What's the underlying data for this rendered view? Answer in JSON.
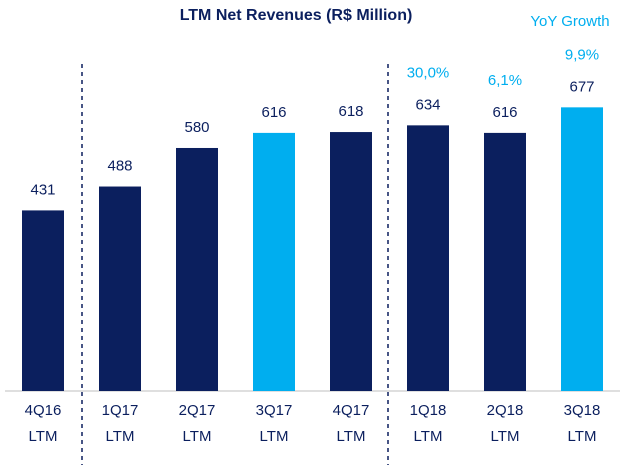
{
  "chart_data": {
    "type": "bar",
    "title": "LTM Net Revenues (R$ Million)",
    "categories": [
      [
        "4Q16",
        "LTM"
      ],
      [
        "1Q17",
        "LTM"
      ],
      [
        "2Q17",
        "LTM"
      ],
      [
        "3Q17",
        "LTM"
      ],
      [
        "4Q17",
        "LTM"
      ],
      [
        "1Q18",
        "LTM"
      ],
      [
        "2Q18",
        "LTM"
      ],
      [
        "3Q18",
        "LTM"
      ]
    ],
    "values": [
      431,
      488,
      580,
      616,
      618,
      634,
      616,
      677
    ],
    "colors": [
      "#0b1f5e",
      "#0b1f5e",
      "#0b1f5e",
      "#00aeef",
      "#0b1f5e",
      "#0b1f5e",
      "#0b1f5e",
      "#00aeef"
    ],
    "growth": {
      "name": "YoY Growth",
      "color": "#00aeef",
      "values": [
        null,
        null,
        null,
        null,
        null,
        30.0,
        6.1,
        9.9
      ],
      "value_labels": [
        null,
        null,
        null,
        null,
        null,
        "30,0%",
        "6,1%",
        "9,9%"
      ]
    }
  }
}
